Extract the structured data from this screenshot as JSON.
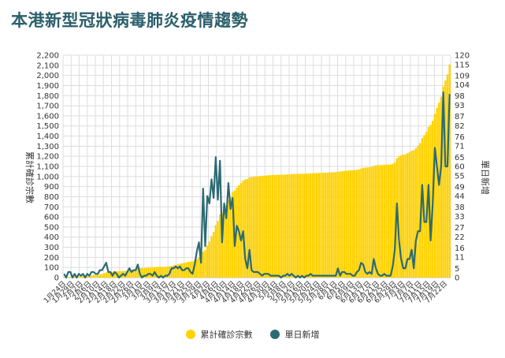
{
  "title": "本港新型冠狀病毒肺炎疫情趨勢",
  "colors": {
    "cumulative": "#FFD200",
    "daily": "#2C6A73",
    "grid": "#dddddd",
    "title": "#2b5f6b"
  },
  "chart_data": {
    "type": "bar+line",
    "title": "本港新型冠狀病毒肺炎疫情趨勢",
    "ylabel_left": "累計確診宗數",
    "ylabel_right": "單日新增",
    "y_left_ticks": [
      0,
      100,
      200,
      300,
      400,
      500,
      600,
      700,
      800,
      900,
      1000,
      1100,
      1200,
      1300,
      1400,
      1500,
      1600,
      1700,
      1800,
      1900,
      2000,
      2100,
      2200
    ],
    "y_left_tick_labels": [
      "0",
      "100",
      "200",
      "300",
      "400",
      "500",
      "600",
      "700",
      "800",
      "900",
      "1,000",
      "1,100",
      "1,200",
      "1,300",
      "1,400",
      "1,500",
      "1,600",
      "1,700",
      "1,800",
      "1,900",
      "2,000",
      "2,100",
      "2,200"
    ],
    "y_right_ticks": [
      0,
      5,
      11,
      16,
      22,
      27,
      33,
      38,
      44,
      49,
      55,
      60,
      65,
      71,
      76,
      82,
      87,
      93,
      98,
      104,
      109,
      115,
      120
    ],
    "ylim_left": [
      0,
      2200
    ],
    "ylim_right": [
      0,
      120
    ],
    "x_tick_labels": [
      "1月24日",
      "1月29日",
      "2月2日",
      "2月6日",
      "2月10日",
      "2月14日",
      "2月18日",
      "2月22日",
      "2月26日",
      "3月1日",
      "3月5日",
      "3月9日",
      "3月13日",
      "3月17日",
      "3月21日",
      "3月25日",
      "3月29日",
      "4月2日",
      "4月6日",
      "4月10日",
      "4月14日",
      "4月18日",
      "4月22日",
      "4月26日",
      "4月30日",
      "5月4日",
      "5月8日",
      "5月12日",
      "5月16日",
      "5月20日",
      "5月24日",
      "5月28日",
      "6月1日",
      "6月5日",
      "6月9日",
      "6月13日",
      "6月17日",
      "6月21日",
      "6月25日",
      "6月29日",
      "7月3日",
      "7月7日",
      "7月11日",
      "7月15日",
      "7月19日",
      "7月22日"
    ],
    "legend": [
      {
        "name": "累計確診宗數",
        "color": "#FFD200"
      },
      {
        "name": "單日新增",
        "color": "#2C6A73"
      }
    ],
    "series": [
      {
        "name": "累計確診宗數",
        "kind": "bar",
        "values": [
          2,
          2,
          5,
          8,
          8,
          10,
          10,
          12,
          13,
          15,
          15,
          17,
          18,
          21,
          24,
          26,
          28,
          32,
          36,
          42,
          50,
          53,
          56,
          57,
          60,
          62,
          62,
          63,
          65,
          66,
          69,
          74,
          77,
          81,
          85,
          92,
          94,
          94,
          95,
          96,
          98,
          100,
          101,
          104,
          105,
          105,
          106,
          106,
          107,
          108,
          110,
          115,
          120,
          126,
          131,
          137,
          141,
          145,
          150,
          155,
          158,
          160,
          167,
          181,
          200,
          208,
          256,
          273,
          317,
          357,
          410,
          453,
          518,
          560,
          623,
          642,
          682,
          714,
          765,
          802,
          845,
          862,
          890,
          915,
          935,
          960,
          970,
          975,
          990,
          994,
          997,
          1000,
          1003,
          1005,
          1006,
          1008,
          1010,
          1012,
          1013,
          1014,
          1015,
          1016,
          1017,
          1017,
          1018,
          1019,
          1021,
          1022,
          1024,
          1025,
          1025,
          1026,
          1026,
          1027,
          1027,
          1028,
          1029,
          1031,
          1032,
          1033,
          1034,
          1035,
          1036,
          1037,
          1038,
          1039,
          1040,
          1041,
          1042,
          1043,
          1048,
          1049,
          1052,
          1055,
          1057,
          1059,
          1061,
          1062,
          1063,
          1066,
          1070,
          1078,
          1085,
          1088,
          1090,
          1093,
          1095,
          1105,
          1110,
          1112,
          1113,
          1114,
          1116,
          1117,
          1118,
          1119,
          1125,
          1140,
          1180,
          1200,
          1210,
          1215,
          1220,
          1230,
          1240,
          1255,
          1260,
          1280,
          1305,
          1330,
          1380,
          1410,
          1440,
          1490,
          1510,
          1550,
          1620,
          1680,
          1730,
          1790,
          1890,
          1950,
          2010,
          2109
        ]
      },
      {
        "name": "單日新增",
        "kind": "line",
        "values": [
          2,
          0,
          3,
          3,
          0,
          2,
          0,
          2,
          1,
          2,
          0,
          2,
          1,
          3,
          3,
          2,
          2,
          4,
          4,
          6,
          8,
          3,
          3,
          1,
          3,
          2,
          0,
          1,
          2,
          1,
          3,
          5,
          3,
          4,
          4,
          7,
          2,
          0,
          1,
          1,
          2,
          2,
          1,
          3,
          1,
          0,
          1,
          0,
          1,
          1,
          2,
          5,
          5,
          6,
          5,
          6,
          4,
          4,
          5,
          5,
          3,
          2,
          7,
          14,
          19,
          8,
          48,
          17,
          44,
          40,
          53,
          43,
          65,
          42,
          63,
          19,
          40,
          32,
          51,
          37,
          43,
          17,
          28,
          25,
          20,
          25,
          10,
          5,
          15,
          4,
          3,
          3,
          3,
          2,
          1,
          2,
          2,
          2,
          1,
          1,
          1,
          1,
          1,
          0,
          1,
          1,
          2,
          1,
          2,
          1,
          0,
          1,
          0,
          1,
          0,
          1,
          1,
          2,
          1,
          1,
          1,
          1,
          1,
          1,
          1,
          1,
          1,
          1,
          1,
          1,
          5,
          1,
          3,
          3,
          2,
          2,
          2,
          1,
          1,
          3,
          4,
          8,
          7,
          3,
          2,
          3,
          2,
          10,
          5,
          2,
          1,
          1,
          2,
          1,
          1,
          1,
          6,
          15,
          40,
          20,
          10,
          5,
          5,
          10,
          10,
          15,
          5,
          20,
          25,
          25,
          50,
          30,
          30,
          50,
          20,
          40,
          70,
          60,
          50,
          60,
          100,
          60,
          60,
          99
        ]
      }
    ]
  }
}
